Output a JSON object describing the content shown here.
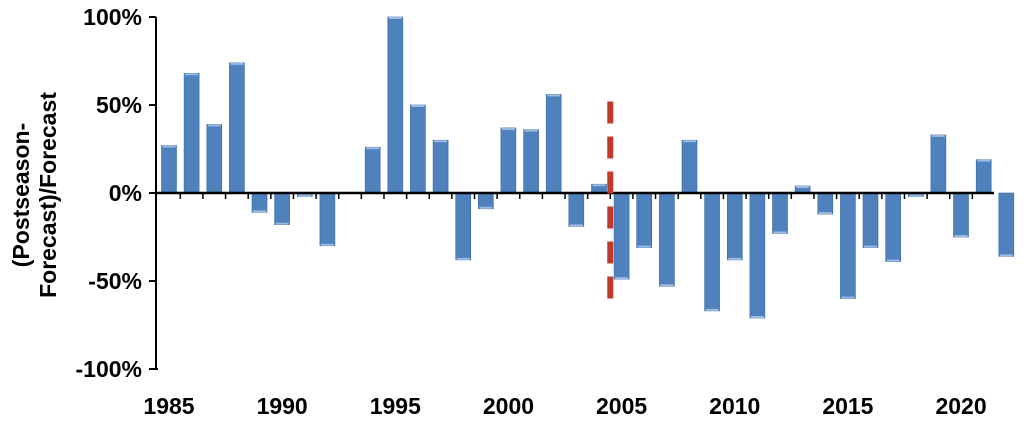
{
  "chart_data": {
    "type": "bar",
    "ylabel": "(Postseason-\nForecast)/Forecast",
    "xlabel": "",
    "ylim": [
      -100,
      100
    ],
    "y_ticks": [
      100,
      50,
      0,
      -50,
      -100
    ],
    "y_tick_labels": [
      "100%",
      "50%",
      "0%",
      "-50%",
      "-100%"
    ],
    "x_ticks": [
      1985,
      1990,
      1995,
      2000,
      2005,
      2010,
      2015,
      2020
    ],
    "x_tick_labels": [
      "1985",
      "1990",
      "1995",
      "2000",
      "2005",
      "2010",
      "2015",
      "2020"
    ],
    "categories": [
      1985,
      1986,
      1987,
      1988,
      1989,
      1990,
      1991,
      1992,
      1993,
      1994,
      1995,
      1996,
      1997,
      1998,
      1999,
      2000,
      2001,
      2002,
      2003,
      2004,
      2005,
      2006,
      2007,
      2008,
      2009,
      2010,
      2011,
      2012,
      2013,
      2014,
      2015,
      2016,
      2017,
      2018,
      2019,
      2020,
      2021,
      2022
    ],
    "values": [
      27,
      68,
      39,
      74,
      -11,
      -18,
      -2,
      -30,
      0,
      26,
      100,
      50,
      30,
      -38,
      -9,
      37,
      36,
      56,
      -19,
      5,
      -49,
      -31,
      -53,
      30,
      -67,
      -38,
      -71,
      -23,
      4,
      -12,
      -60,
      -31,
      -39,
      -2,
      33,
      -25,
      19,
      -36
    ],
    "reference_line": {
      "x": 2004.5,
      "style": "dashed",
      "color": "#c0392b"
    },
    "bar_color": "#4f81bd",
    "grid": false,
    "legend": "none"
  }
}
